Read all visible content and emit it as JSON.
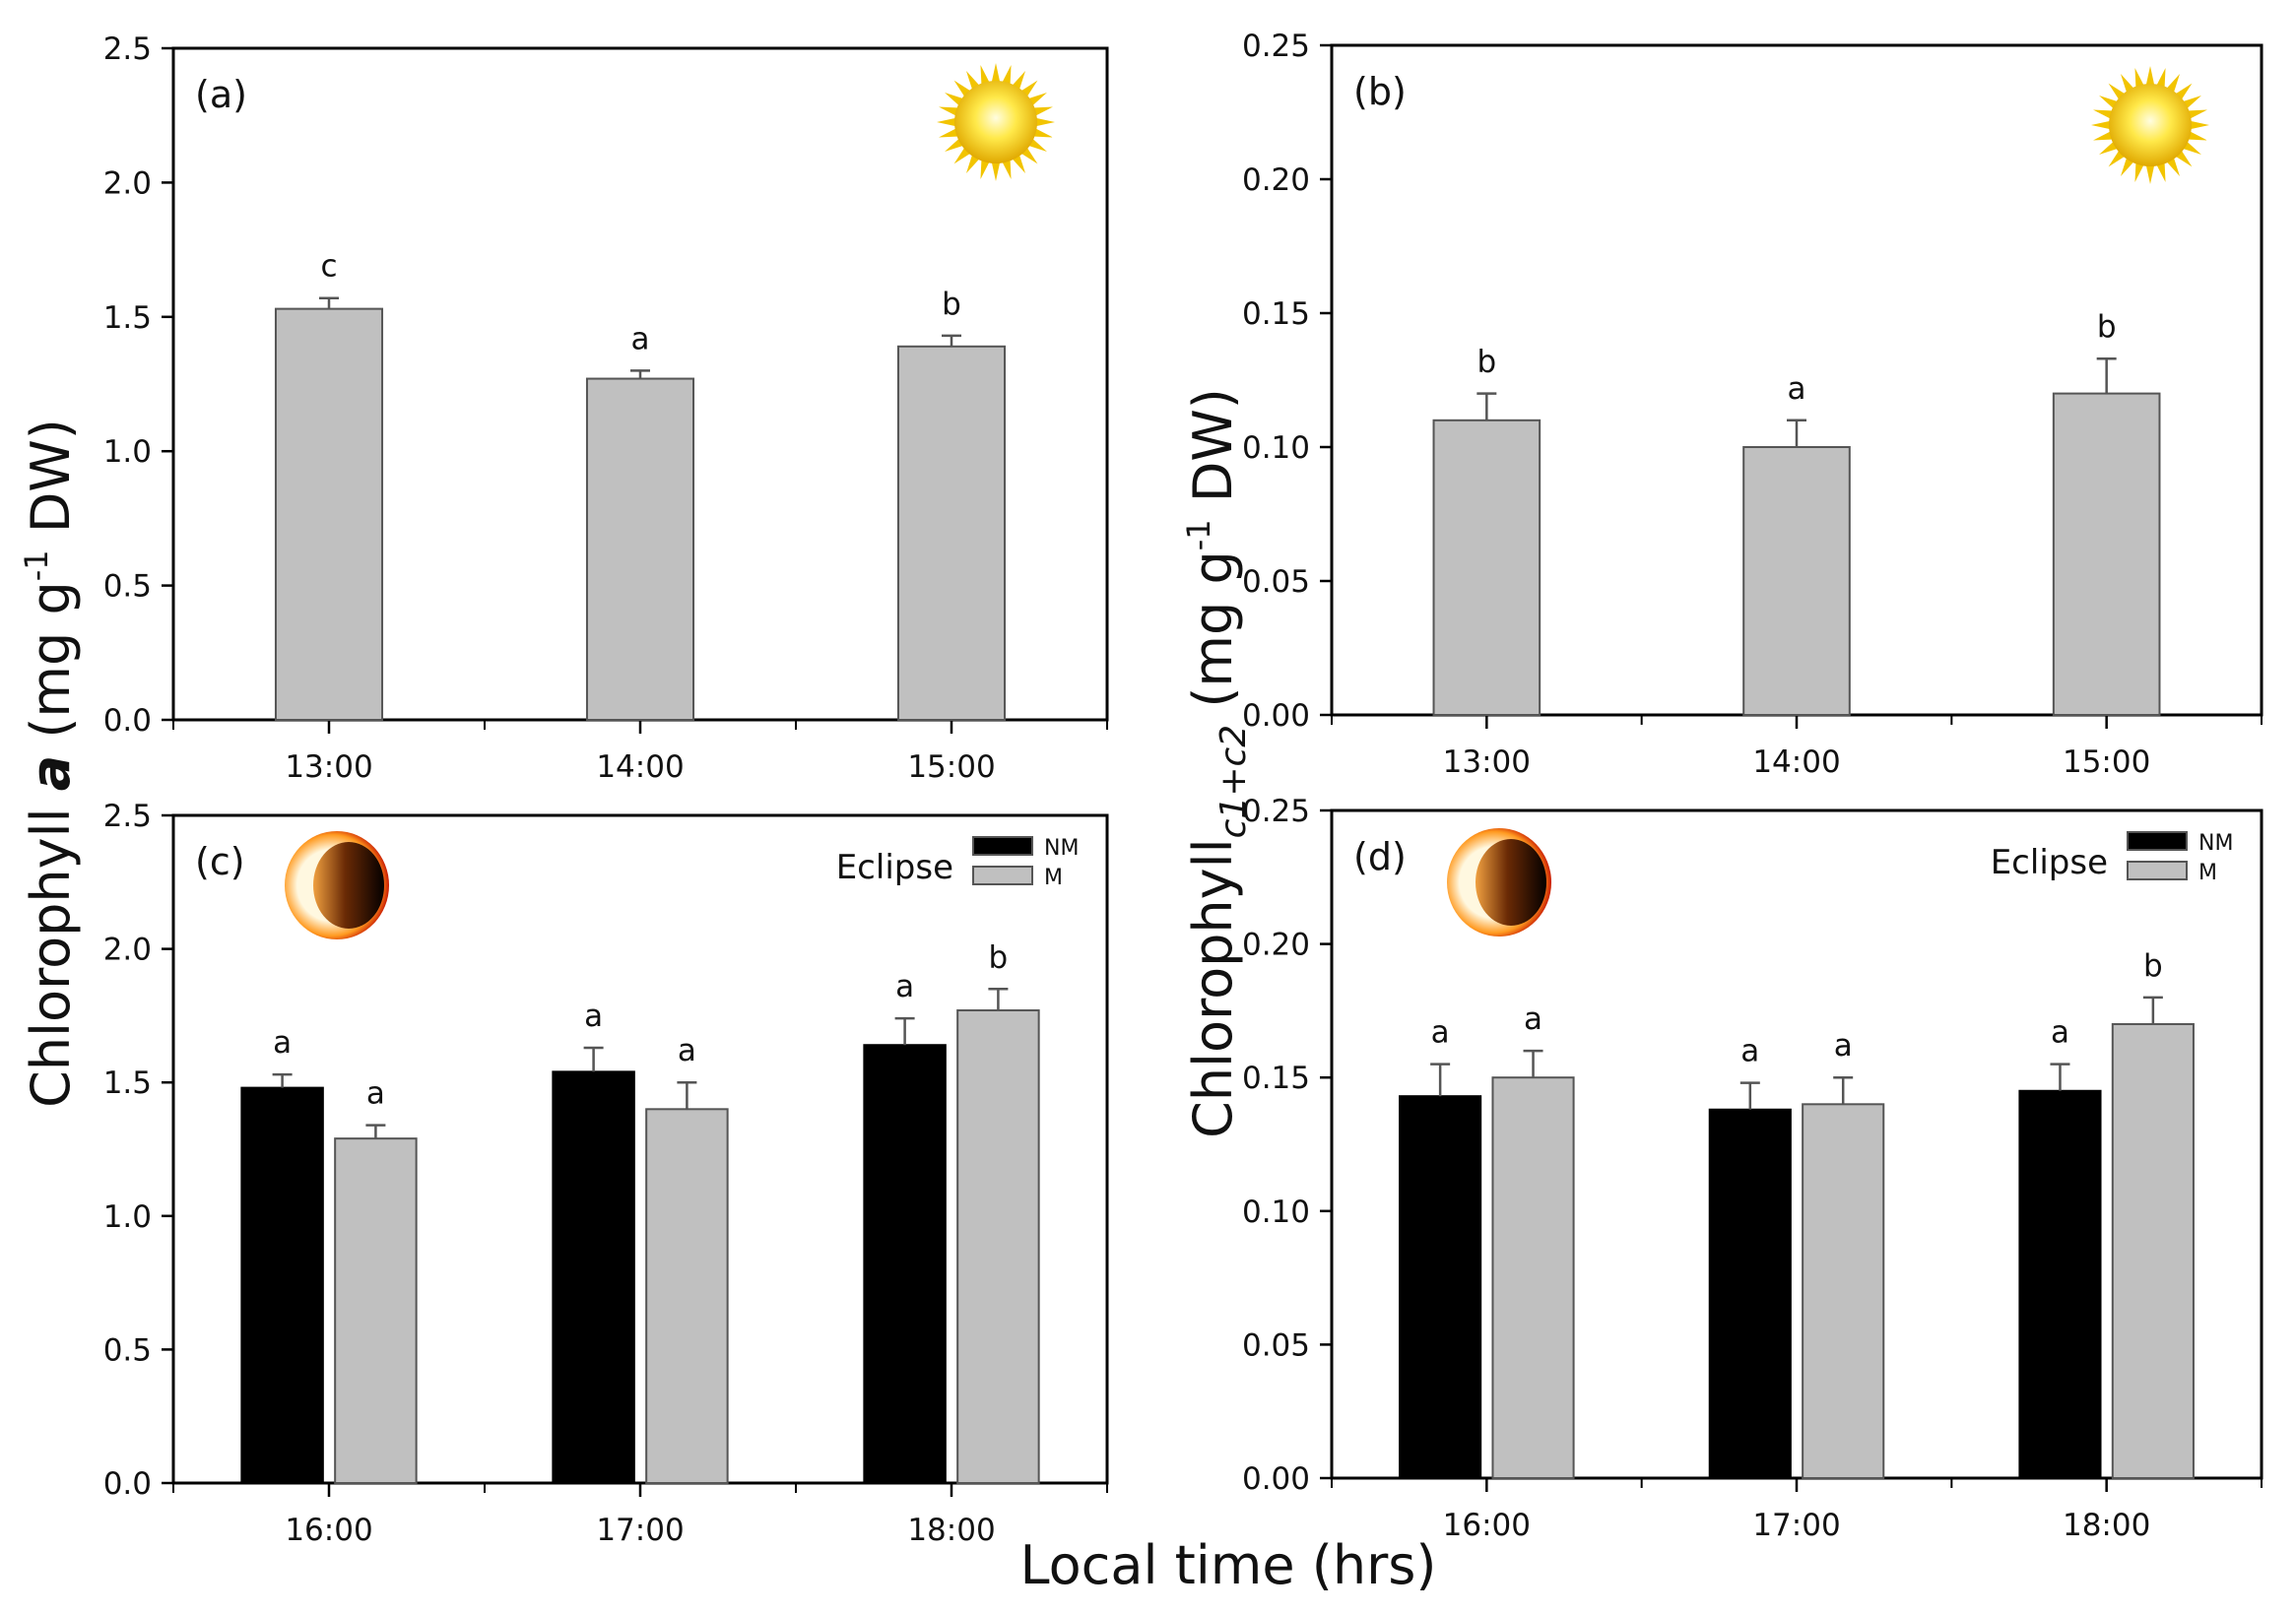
{
  "figure": {
    "left_ylabel": {
      "main": "Chlorophyll ",
      "italic": "a",
      "unit_pre": " (mg g",
      "sup": "-1",
      "unit_post": " DW)"
    },
    "right_ylabel": {
      "main": "Chlorophyll",
      "sub": "c1+c2",
      "unit_pre": " (mg g",
      "sup": "-1",
      "unit_post": " DW)"
    },
    "xlabel": "Local time (hrs)",
    "colors": {
      "NM": "#000000",
      "M": "#c0c0c0",
      "single": "#c0c0c0"
    }
  },
  "chart_data": [
    {
      "panel": "(a)",
      "type": "bar",
      "icon": "sun-icon",
      "categories": [
        "13:00",
        "14:00",
        "15:00"
      ],
      "ylim": [
        0,
        2.5
      ],
      "yticks": [
        "0.0",
        "0.5",
        "1.0",
        "1.5",
        "2.0",
        "2.5"
      ],
      "ytick_values": [
        0,
        0.5,
        1.0,
        1.5,
        2.0,
        2.5
      ],
      "series": [
        {
          "name": "",
          "values": [
            1.53,
            1.27,
            1.39
          ],
          "errors": [
            0.04,
            0.03,
            0.04
          ],
          "letters": [
            "c",
            "a",
            "b"
          ]
        }
      ]
    },
    {
      "panel": "(b)",
      "type": "bar",
      "icon": "sun-icon",
      "categories": [
        "13:00",
        "14:00",
        "15:00"
      ],
      "ylim": [
        0,
        0.25
      ],
      "yticks": [
        "0.00",
        "0.05",
        "0.10",
        "0.15",
        "0.20",
        "0.25"
      ],
      "ytick_values": [
        0,
        0.05,
        0.1,
        0.15,
        0.2,
        0.25
      ],
      "series": [
        {
          "name": "",
          "values": [
            0.11,
            0.1,
            0.12
          ],
          "errors": [
            0.01,
            0.01,
            0.013
          ],
          "letters": [
            "b",
            "a",
            "b"
          ]
        }
      ]
    },
    {
      "panel": "(c)",
      "type": "bar",
      "icon": "eclipse-icon",
      "categories": [
        "16:00",
        "17:00",
        "18:00"
      ],
      "ylim": [
        0,
        2.5
      ],
      "yticks": [
        "0.0",
        "0.5",
        "1.0",
        "1.5",
        "2.0",
        "2.5"
      ],
      "ytick_values": [
        0,
        0.5,
        1.0,
        1.5,
        2.0,
        2.5
      ],
      "legend": {
        "title": "Eclipse",
        "entries": [
          "NM",
          "M"
        ],
        "placement": "top-right"
      },
      "series": [
        {
          "name": "NM",
          "values": [
            1.48,
            1.54,
            1.64
          ],
          "errors": [
            0.05,
            0.09,
            0.1
          ],
          "letters": [
            "a",
            "a",
            "a"
          ]
        },
        {
          "name": "M",
          "values": [
            1.29,
            1.4,
            1.77
          ],
          "errors": [
            0.05,
            0.1,
            0.08
          ],
          "letters": [
            "a",
            "a",
            "b"
          ]
        }
      ]
    },
    {
      "panel": "(d)",
      "type": "bar",
      "icon": "eclipse-icon",
      "categories": [
        "16:00",
        "17:00",
        "18:00"
      ],
      "ylim": [
        0,
        0.25
      ],
      "yticks": [
        "0.00",
        "0.05",
        "0.10",
        "0.15",
        "0.20",
        "0.25"
      ],
      "ytick_values": [
        0,
        0.05,
        0.1,
        0.15,
        0.2,
        0.25
      ],
      "legend": {
        "title": "Eclipse",
        "entries": [
          "NM",
          "M"
        ],
        "placement": "top-right"
      },
      "series": [
        {
          "name": "NM",
          "values": [
            0.143,
            0.138,
            0.145
          ],
          "errors": [
            0.012,
            0.01,
            0.01
          ],
          "letters": [
            "a",
            "a",
            "a"
          ]
        },
        {
          "name": "M",
          "values": [
            0.15,
            0.14,
            0.17
          ],
          "errors": [
            0.01,
            0.01,
            0.01
          ],
          "letters": [
            "a",
            "a",
            "b"
          ]
        }
      ]
    }
  ]
}
